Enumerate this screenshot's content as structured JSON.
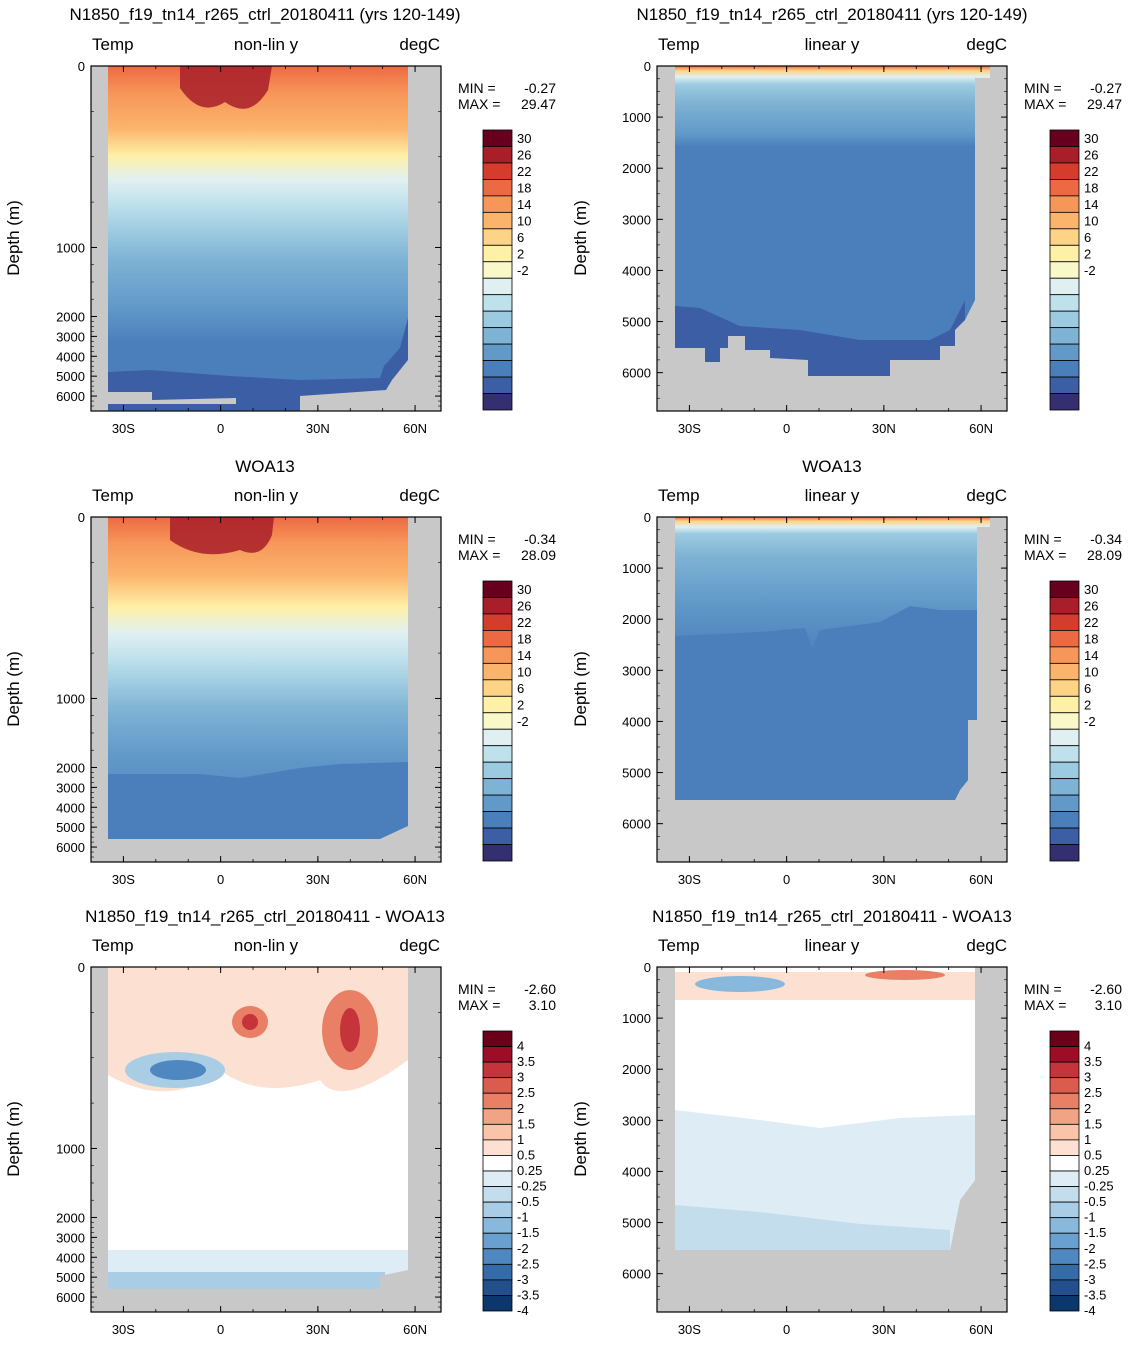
{
  "figure": {
    "model_title": "N1850_f19_tn14_r265_ctrl_20180411 (yrs 120-149)",
    "obs_title": "WOA13",
    "diff_title": "N1850_f19_tn14_r265_ctrl_20180411 - WOA13"
  },
  "panel_labels": {
    "variable": "Temp",
    "units": "degC",
    "nonlin": "non-lin y",
    "linear": "linear y",
    "ylabel": "Depth (m)",
    "min_label": "MIN =",
    "max_label": "MAX ="
  },
  "chart_data": [
    {
      "id": "model-nonlin",
      "type": "heatmap",
      "title": "N1850_f19_tn14_r265_ctrl_20180411 (yrs 120-149)",
      "left_label": "Temp",
      "center_label": "non-lin y",
      "right_label": "degC",
      "ylabel": "Depth (m)",
      "x_ticks": [
        "30S",
        "0",
        "30N",
        "60N"
      ],
      "y_ticks": [
        "0",
        "1000",
        "2000",
        "3000",
        "4000",
        "5000",
        "6000"
      ],
      "xlim": [
        -40,
        68
      ],
      "ylim": [
        6750,
        0
      ],
      "min": "-0.27",
      "max": "29.47",
      "colorbar_labels": [
        "30",
        "26",
        "22",
        "18",
        "14",
        "10",
        "6",
        "2",
        "-2"
      ]
    },
    {
      "id": "model-linear",
      "type": "heatmap",
      "title": "N1850_f19_tn14_r265_ctrl_20180411 (yrs 120-149)",
      "left_label": "Temp",
      "center_label": "linear y",
      "right_label": "degC",
      "ylabel": "Depth (m)",
      "x_ticks": [
        "30S",
        "0",
        "30N",
        "60N"
      ],
      "y_ticks": [
        "0",
        "1000",
        "2000",
        "3000",
        "4000",
        "5000",
        "6000"
      ],
      "xlim": [
        -40,
        68
      ],
      "ylim": [
        6750,
        0
      ],
      "min": "-0.27",
      "max": "29.47",
      "colorbar_labels": [
        "30",
        "26",
        "22",
        "18",
        "14",
        "10",
        "6",
        "2",
        "-2"
      ]
    },
    {
      "id": "obs-nonlin",
      "type": "heatmap",
      "title": "WOA13",
      "left_label": "Temp",
      "center_label": "non-lin y",
      "right_label": "degC",
      "ylabel": "Depth (m)",
      "x_ticks": [
        "30S",
        "0",
        "30N",
        "60N"
      ],
      "y_ticks": [
        "0",
        "1000",
        "2000",
        "3000",
        "4000",
        "5000",
        "6000"
      ],
      "xlim": [
        -40,
        68
      ],
      "ylim": [
        6750,
        0
      ],
      "min": "-0.34",
      "max": "28.09",
      "colorbar_labels": [
        "30",
        "26",
        "22",
        "18",
        "14",
        "10",
        "6",
        "2",
        "-2"
      ]
    },
    {
      "id": "obs-linear",
      "type": "heatmap",
      "title": "WOA13",
      "left_label": "Temp",
      "center_label": "linear y",
      "right_label": "degC",
      "ylabel": "Depth (m)",
      "x_ticks": [
        "30S",
        "0",
        "30N",
        "60N"
      ],
      "y_ticks": [
        "0",
        "1000",
        "2000",
        "3000",
        "4000",
        "5000",
        "6000"
      ],
      "xlim": [
        -40,
        68
      ],
      "ylim": [
        6750,
        0
      ],
      "min": "-0.34",
      "max": "28.09",
      "colorbar_labels": [
        "30",
        "26",
        "22",
        "18",
        "14",
        "10",
        "6",
        "2",
        "-2"
      ]
    },
    {
      "id": "diff-nonlin",
      "type": "heatmap",
      "title": "N1850_f19_tn14_r265_ctrl_20180411 - WOA13",
      "left_label": "Temp",
      "center_label": "non-lin y",
      "right_label": "degC",
      "ylabel": "Depth (m)",
      "x_ticks": [
        "30S",
        "0",
        "30N",
        "60N"
      ],
      "y_ticks": [
        "0",
        "1000",
        "2000",
        "3000",
        "4000",
        "5000",
        "6000"
      ],
      "xlim": [
        -40,
        68
      ],
      "ylim": [
        6750,
        0
      ],
      "min": "-2.60",
      "max": "3.10",
      "colorbar_labels": [
        "4",
        "3.5",
        "3",
        "2.5",
        "2",
        "1.5",
        "1",
        "0.5",
        "0.25",
        "-0.25",
        "-0.5",
        "-1",
        "-1.5",
        "-2",
        "-2.5",
        "-3",
        "-3.5",
        "-4"
      ]
    },
    {
      "id": "diff-linear",
      "type": "heatmap",
      "title": "N1850_f19_tn14_r265_ctrl_20180411 - WOA13",
      "left_label": "Temp",
      "center_label": "linear y",
      "right_label": "degC",
      "ylabel": "Depth (m)",
      "x_ticks": [
        "30S",
        "0",
        "30N",
        "60N"
      ],
      "y_ticks": [
        "0",
        "1000",
        "2000",
        "3000",
        "4000",
        "5000",
        "6000"
      ],
      "xlim": [
        -40,
        68
      ],
      "ylim": [
        6750,
        0
      ],
      "min": "-2.60",
      "max": "3.10",
      "colorbar_labels": [
        "4",
        "3.5",
        "3",
        "2.5",
        "2",
        "1.5",
        "1",
        "0.5",
        "0.25",
        "-0.25",
        "-0.5",
        "-1",
        "-1.5",
        "-2",
        "-2.5",
        "-3",
        "-3.5",
        "-4"
      ]
    }
  ],
  "colors": {
    "temp_scale": [
      "#67001f",
      "#a81e29",
      "#d43d2e",
      "#ec6a43",
      "#f79659",
      "#fbb46c",
      "#fdd386",
      "#fef0a6",
      "#f8f8c8",
      "#e0f0f2",
      "#bfe1ec",
      "#9ccbe1",
      "#7fb3d4",
      "#6199c9",
      "#4b7fbc",
      "#3c5ea5",
      "#342f70"
    ],
    "diff_scale": [
      "#6b0019",
      "#9e0d26",
      "#c5343b",
      "#db5b4e",
      "#e98066",
      "#f3a385",
      "#f9c4aa",
      "#fce1d2",
      "#ffffff",
      "#deecf5",
      "#c4dded",
      "#a9cde5",
      "#88b8db",
      "#6aa0cf",
      "#4f87c1",
      "#356ba8",
      "#21508d",
      "#0b376c"
    ],
    "land": "#c8c8c8"
  }
}
